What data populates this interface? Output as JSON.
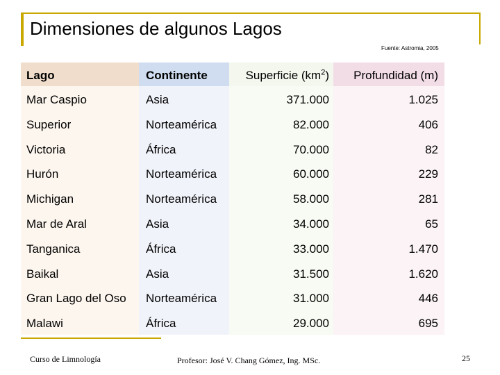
{
  "title": "Dimensiones de algunos Lagos",
  "source": "Fuente: Astromia, 2005",
  "table": {
    "headers": {
      "lago": "Lago",
      "continente": "Continente",
      "superficie_pre": "Superficie (km",
      "superficie_sup": "2",
      "superficie_post": ")",
      "profundidad": "Profundidad (m)"
    },
    "rows": [
      {
        "lago": "Mar Caspio",
        "continente": "Asia",
        "superficie": "371.000",
        "profundidad": "1.025"
      },
      {
        "lago": "Superior",
        "continente": "Norteamérica",
        "superficie": "82.000",
        "profundidad": "406"
      },
      {
        "lago": "Victoria",
        "continente": "África",
        "superficie": "70.000",
        "profundidad": "82"
      },
      {
        "lago": "Hurón",
        "continente": "Norteamérica",
        "superficie": "60.000",
        "profundidad": "229"
      },
      {
        "lago": "Michigan",
        "continente": "Norteamérica",
        "superficie": "58.000",
        "profundidad": "281"
      },
      {
        "lago": "Mar de Aral",
        "continente": "Asia",
        "superficie": "34.000",
        "profundidad": "65"
      },
      {
        "lago": "Tanganica",
        "continente": "África",
        "superficie": "33.000",
        "profundidad": "1.470"
      },
      {
        "lago": "Baikal",
        "continente": "Asia",
        "superficie": "31.500",
        "profundidad": "1.620"
      },
      {
        "lago": "Gran Lago del Oso",
        "continente": "Norteamérica",
        "superficie": "31.000",
        "profundidad": "446"
      },
      {
        "lago": "Malawi",
        "continente": "África",
        "superficie": "29.000",
        "profundidad": "695"
      }
    ]
  },
  "footer": {
    "course": "Curso de Limnología",
    "professor": "Profesor: José V. Chang Gómez, Ing. MSc.",
    "page": "25"
  },
  "colors": {
    "accent": "#c8a800",
    "header_lago": "#f0ddcc",
    "header_continente": "#d0dcef",
    "header_superficie": "#f3f7ee",
    "header_profundidad": "#f2dde6"
  }
}
